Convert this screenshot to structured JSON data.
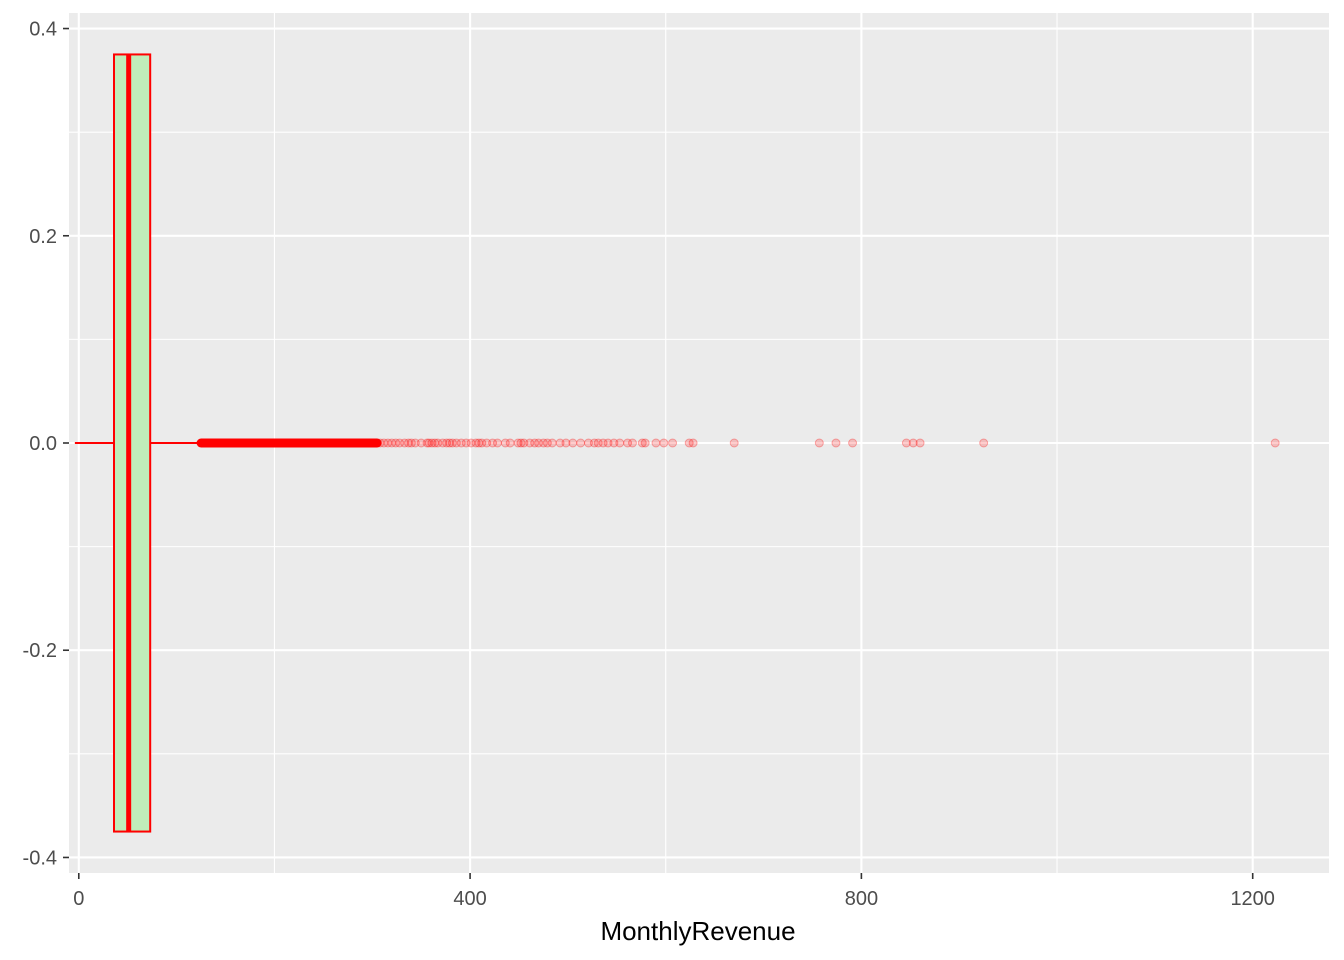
{
  "chart_data": {
    "type": "boxplot",
    "orientation": "horizontal",
    "xlabel": "MonthlyRevenue",
    "ylabel": "",
    "xlim": [
      -10,
      1278
    ],
    "ylim": [
      -0.415,
      0.415
    ],
    "x_ticks": [
      0,
      400,
      800,
      1200
    ],
    "x_tick_labels": [
      "0",
      "400",
      "800",
      "1200"
    ],
    "y_ticks": [
      0.4,
      0.2,
      0.0,
      -0.2,
      -0.4
    ],
    "y_tick_labels": [
      "0.4",
      "0.2",
      "0.0",
      "-0.2",
      "-0.4"
    ],
    "grid": true,
    "box": {
      "y_center": 0,
      "y_half_height": 0.375,
      "whisker_low": -4,
      "q1": 36,
      "median": 51,
      "q3": 73,
      "whisker_high": 125
    },
    "outlier_dense_range": [
      125,
      305
    ],
    "outliers": [
      308,
      312,
      316,
      320,
      324,
      328,
      333,
      337,
      340,
      344,
      350,
      356,
      358,
      361,
      364,
      367,
      372,
      376,
      379,
      382,
      386,
      391,
      396,
      401,
      406,
      409,
      412,
      417,
      423,
      428,
      436,
      441,
      449,
      452,
      455,
      461,
      466,
      470,
      475,
      479,
      484,
      492,
      498,
      505,
      513,
      521,
      527,
      531,
      536,
      541,
      547,
      553,
      561,
      566,
      576,
      579,
      590,
      598,
      607,
      624,
      628,
      670,
      757,
      774,
      791,
      846,
      853,
      860,
      925,
      1223
    ],
    "colors": {
      "panel_background": "#ebebeb",
      "grid_major": "#ffffff",
      "box_fill": "#c0edba",
      "box_outline": "#ff0000",
      "outlier": "#ff0000"
    }
  }
}
